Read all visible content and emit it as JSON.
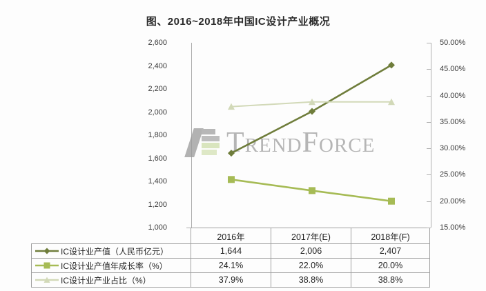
{
  "title": "图、2016~2018年中国IC设计产业概况",
  "watermark": {
    "text": "TrendForce"
  },
  "axes": {
    "left_ticks": [
      "2,600",
      "2,400",
      "2,200",
      "2,000",
      "1,800",
      "1,600",
      "1,400",
      "1,200",
      "1,000"
    ],
    "right_ticks": [
      "50.00%",
      "45.00%",
      "40.00%",
      "35.00%",
      "30.00%",
      "25.00%",
      "20.00%",
      "15.00%"
    ]
  },
  "chart_data": {
    "type": "line",
    "categories": [
      "2016年",
      "2017年(E)",
      "2018年(F)"
    ],
    "left_axis_range": [
      1000,
      2600
    ],
    "right_axis_range": [
      15,
      50
    ],
    "grid": false,
    "legend_position": "table-left-column",
    "series": [
      {
        "name": "IC设计业产值（人民币亿元）",
        "axis": "left",
        "marker": "diamond",
        "color": "#6f7d3b",
        "values": [
          1644,
          2006,
          2407
        ],
        "display": [
          "1,644",
          "2,006",
          "2,407"
        ]
      },
      {
        "name": "IC设计业产值年成长率（%）",
        "axis": "right",
        "marker": "square",
        "color": "#a6bb55",
        "values": [
          24.1,
          22.0,
          20.0
        ],
        "display": [
          "24.1%",
          "22.0%",
          "20.0%"
        ]
      },
      {
        "name": "IC设计业产业占比（%）",
        "axis": "right",
        "marker": "triangle",
        "color": "#d2d9b8",
        "values": [
          37.9,
          38.8,
          38.8
        ],
        "display": [
          "37.9%",
          "38.8%",
          "38.8%"
        ]
      }
    ]
  }
}
